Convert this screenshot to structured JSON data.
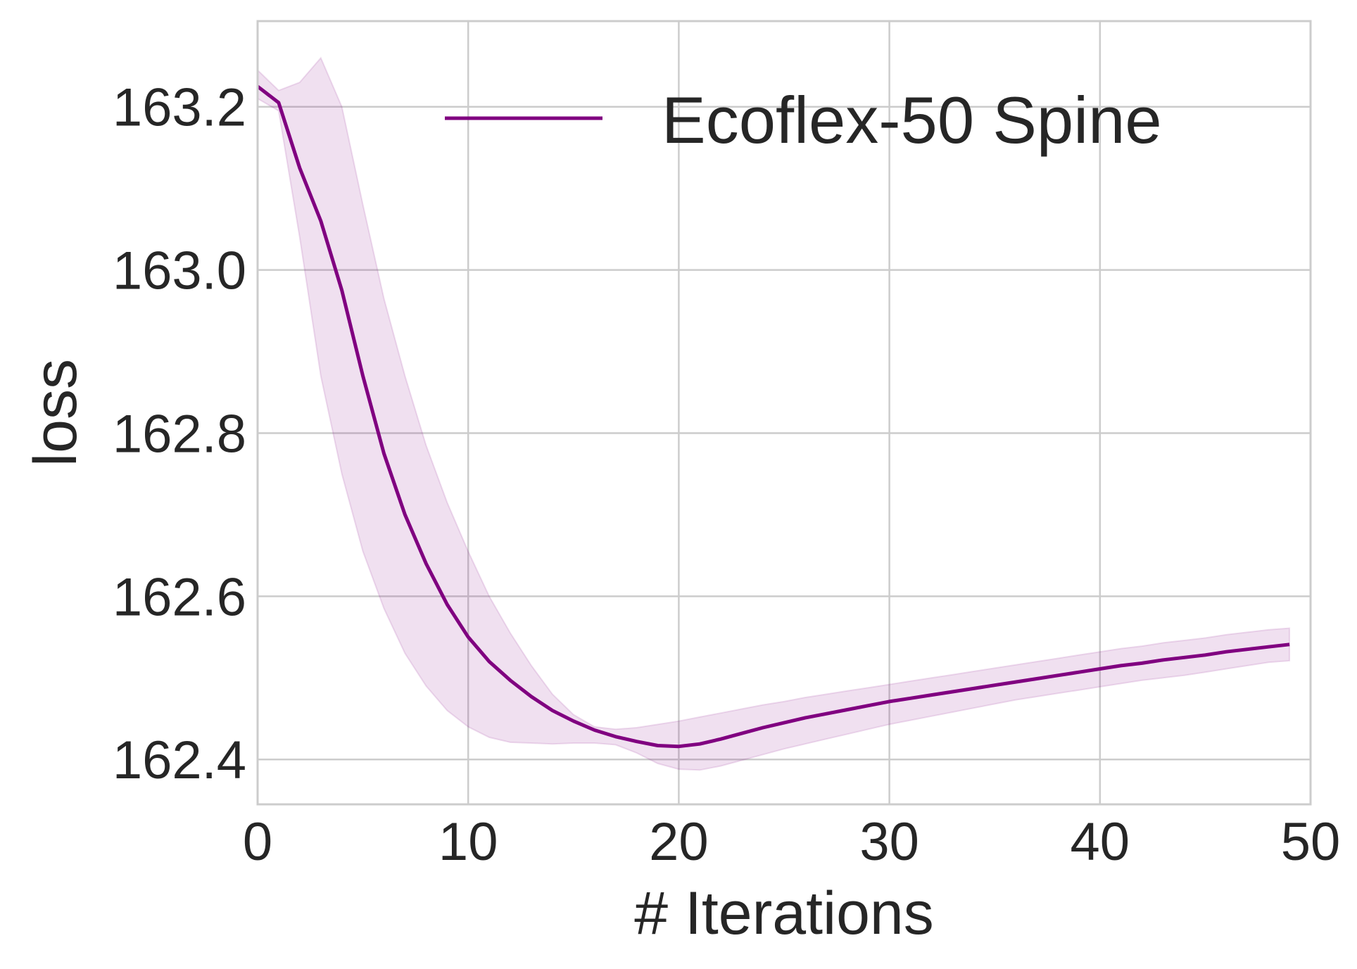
{
  "chart_data": {
    "type": "line",
    "xlabel": "# Iterations",
    "ylabel": "loss",
    "xlim": [
      0,
      50
    ],
    "ylim": [
      162.345,
      163.305
    ],
    "xticks": [
      0,
      10,
      20,
      30,
      40,
      50
    ],
    "xtick_labels": [
      "0",
      "10",
      "20",
      "30",
      "40",
      "50"
    ],
    "yticks": [
      162.4,
      162.6,
      162.8,
      163.0,
      163.2
    ],
    "ytick_labels": [
      "162.4",
      "162.6",
      "162.8",
      "163.0",
      "163.2"
    ],
    "grid": true,
    "legend_position": "top-right",
    "series": [
      {
        "name": "Ecoflex-50 Spine",
        "color": "#800080",
        "band_color": "#800080",
        "x": [
          0,
          1,
          2,
          3,
          4,
          5,
          6,
          7,
          8,
          9,
          10,
          11,
          12,
          13,
          14,
          15,
          16,
          17,
          18,
          19,
          20,
          21,
          22,
          23,
          24,
          25,
          26,
          27,
          28,
          29,
          30,
          31,
          32,
          33,
          34,
          35,
          36,
          37,
          38,
          39,
          40,
          41,
          42,
          43,
          44,
          45,
          46,
          47,
          48,
          49
        ],
        "values": [
          163.225,
          163.205,
          163.125,
          163.06,
          162.975,
          162.87,
          162.775,
          162.7,
          162.64,
          162.59,
          162.55,
          162.52,
          162.497,
          162.477,
          162.46,
          162.447,
          162.436,
          162.428,
          162.422,
          162.417,
          162.416,
          162.419,
          162.425,
          162.432,
          162.439,
          162.445,
          162.451,
          162.456,
          162.461,
          162.466,
          162.471,
          162.475,
          162.479,
          162.483,
          162.487,
          162.491,
          162.495,
          162.499,
          162.503,
          162.507,
          162.511,
          162.515,
          162.518,
          162.522,
          162.525,
          162.528,
          162.532,
          162.535,
          162.538,
          162.541
        ],
        "upper": [
          163.245,
          163.22,
          163.23,
          163.26,
          163.2,
          163.08,
          162.965,
          162.87,
          162.785,
          162.715,
          162.655,
          162.6,
          162.555,
          162.515,
          162.48,
          162.455,
          162.44,
          162.437,
          162.439,
          162.443,
          162.447,
          162.452,
          162.457,
          162.462,
          162.467,
          162.471,
          162.476,
          162.48,
          162.484,
          162.488,
          162.492,
          162.496,
          162.5,
          162.504,
          162.508,
          162.512,
          162.516,
          162.52,
          162.524,
          162.528,
          162.532,
          162.536,
          162.539,
          162.543,
          162.546,
          162.549,
          162.553,
          162.556,
          162.559,
          162.561
        ],
        "lower": [
          163.21,
          163.195,
          163.04,
          162.87,
          162.75,
          162.655,
          162.585,
          162.53,
          162.49,
          162.46,
          162.44,
          162.427,
          162.421,
          162.42,
          162.419,
          162.42,
          162.42,
          162.418,
          162.408,
          162.395,
          162.388,
          162.387,
          162.392,
          162.399,
          162.406,
          162.413,
          162.419,
          162.425,
          162.431,
          162.437,
          162.443,
          162.448,
          162.453,
          162.458,
          162.463,
          162.468,
          162.473,
          162.477,
          162.481,
          162.485,
          162.489,
          162.493,
          162.497,
          162.5,
          162.503,
          162.507,
          162.511,
          162.515,
          162.519,
          162.521
        ]
      }
    ]
  }
}
